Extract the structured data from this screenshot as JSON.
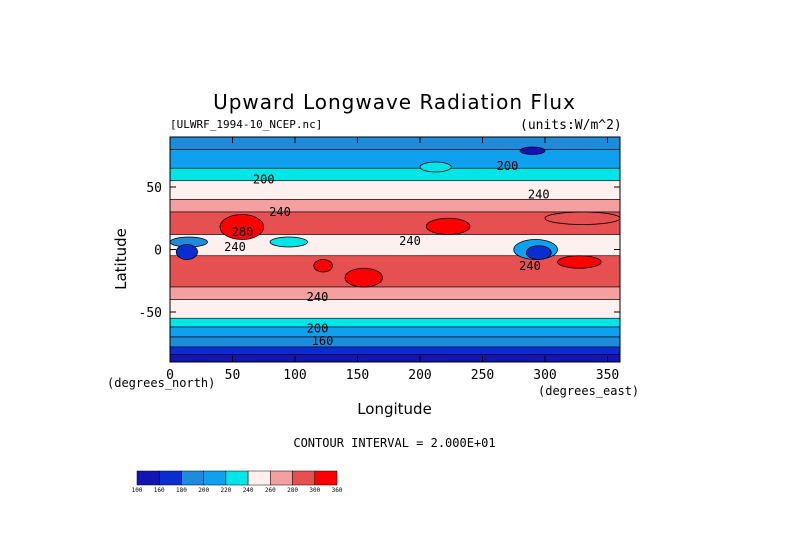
{
  "chart_data": {
    "type": "heatmap",
    "title": "Upward Longwave Radiation Flux",
    "source": "[ULWRF_1994-10_NCEP.nc]",
    "units": "(units:W/m^2)",
    "xlabel": "Longitude",
    "ylabel": "Latitude",
    "x_unit_label": "(degrees_east)",
    "y_unit_label": "(degrees_north)",
    "xlim": [
      0,
      360
    ],
    "ylim": [
      -90,
      90
    ],
    "x_ticks": [
      0,
      50,
      100,
      150,
      200,
      250,
      300,
      350
    ],
    "y_ticks": [
      -50,
      0,
      50
    ],
    "contour_interval_text": "CONTOUR INTERVAL = 2.000E+01",
    "contour_labels": [
      {
        "x": 75,
        "y": 56,
        "text": "200"
      },
      {
        "x": 270,
        "y": 67,
        "text": "200"
      },
      {
        "x": 295,
        "y": 44,
        "text": "240"
      },
      {
        "x": 88,
        "y": 30,
        "text": "240"
      },
      {
        "x": 58,
        "y": 14,
        "text": "280"
      },
      {
        "x": 52,
        "y": 2,
        "text": "240"
      },
      {
        "x": 192,
        "y": 7,
        "text": "240"
      },
      {
        "x": 288,
        "y": -13,
        "text": "240"
      },
      {
        "x": 118,
        "y": -38,
        "text": "240"
      },
      {
        "x": 118,
        "y": -63,
        "text": "200"
      },
      {
        "x": 122,
        "y": -73,
        "text": "160"
      }
    ],
    "colorbar": {
      "levels": [
        "100",
        "160",
        "180",
        "200",
        "220",
        "240",
        "260",
        "280",
        "300",
        "360"
      ],
      "colors": [
        "#1414b4",
        "#0a2dd2",
        "#1e8cdc",
        "#0fa0f0",
        "#00e6e6",
        "#fff0f0",
        "#f5a0a0",
        "#e65050",
        "#ff0000"
      ]
    },
    "latitude_bands": [
      {
        "lat": [
          80,
          90
        ],
        "value": 190,
        "color": "#1e8cdc"
      },
      {
        "lat": [
          65,
          80
        ],
        "value": 210,
        "color": "#0fa0f0"
      },
      {
        "lat": [
          55,
          65
        ],
        "value": 225,
        "color": "#00e6e6"
      },
      {
        "lat": [
          40,
          55
        ],
        "value": 245,
        "color": "#fff0f0"
      },
      {
        "lat": [
          30,
          40
        ],
        "value": 265,
        "color": "#f5a0a0"
      },
      {
        "lat": [
          12,
          30
        ],
        "value": 285,
        "color": "#e65050"
      },
      {
        "lat": [
          -5,
          12
        ],
        "value": 245,
        "color": "#fff0f0"
      },
      {
        "lat": [
          -30,
          -5
        ],
        "value": 285,
        "color": "#e65050"
      },
      {
        "lat": [
          -40,
          -30
        ],
        "value": 265,
        "color": "#f5a0a0"
      },
      {
        "lat": [
          -55,
          -40
        ],
        "value": 245,
        "color": "#fff0f0"
      },
      {
        "lat": [
          -62,
          -55
        ],
        "value": 225,
        "color": "#00e6e6"
      },
      {
        "lat": [
          -70,
          -62
        ],
        "value": 210,
        "color": "#0fa0f0"
      },
      {
        "lat": [
          -78,
          -70
        ],
        "value": 195,
        "color": "#1e8cdc"
      },
      {
        "lat": [
          -84,
          -78
        ],
        "value": 175,
        "color": "#0a2dd2"
      },
      {
        "lat": [
          -90,
          -84
        ],
        "value": 150,
        "color": "#1414b4"
      }
    ],
    "features": [
      {
        "lon": [
          0,
          30
        ],
        "lat": [
          2,
          10
        ],
        "value": 190,
        "color": "#1e8cdc"
      },
      {
        "lon": [
          5,
          22
        ],
        "lat": [
          -8,
          4
        ],
        "value": 165,
        "color": "#0a2dd2"
      },
      {
        "lon": [
          275,
          310
        ],
        "lat": [
          -8,
          8
        ],
        "value": 200,
        "color": "#0fa0f0"
      },
      {
        "lon": [
          285,
          305
        ],
        "lat": [
          -8,
          3
        ],
        "value": 175,
        "color": "#0a2dd2"
      },
      {
        "lon": [
          40,
          75
        ],
        "lat": [
          8,
          28
        ],
        "value": 305,
        "color": "#ff0000"
      },
      {
        "lon": [
          115,
          130
        ],
        "lat": [
          -18,
          -8
        ],
        "value": 305,
        "color": "#ff0000"
      },
      {
        "lon": [
          140,
          170
        ],
        "lat": [
          -30,
          -15
        ],
        "value": 305,
        "color": "#ff0000"
      },
      {
        "lon": [
          205,
          240
        ],
        "lat": [
          12,
          25
        ],
        "value": 305,
        "color": "#ff0000"
      },
      {
        "lon": [
          310,
          345
        ],
        "lat": [
          -15,
          -5
        ],
        "value": 305,
        "color": "#ff0000"
      },
      {
        "lon": [
          300,
          360
        ],
        "lat": [
          20,
          30
        ],
        "value": 285,
        "color": "#e65050"
      },
      {
        "lon": [
          80,
          110
        ],
        "lat": [
          2,
          10
        ],
        "value": 225,
        "color": "#00e6e6"
      },
      {
        "lon": [
          280,
          300
        ],
        "lat": [
          76,
          82
        ],
        "value": 165,
        "color": "#1414b4"
      },
      {
        "lon": [
          200,
          225
        ],
        "lat": [
          62,
          70
        ],
        "value": 225,
        "color": "#00e6e6"
      }
    ]
  }
}
